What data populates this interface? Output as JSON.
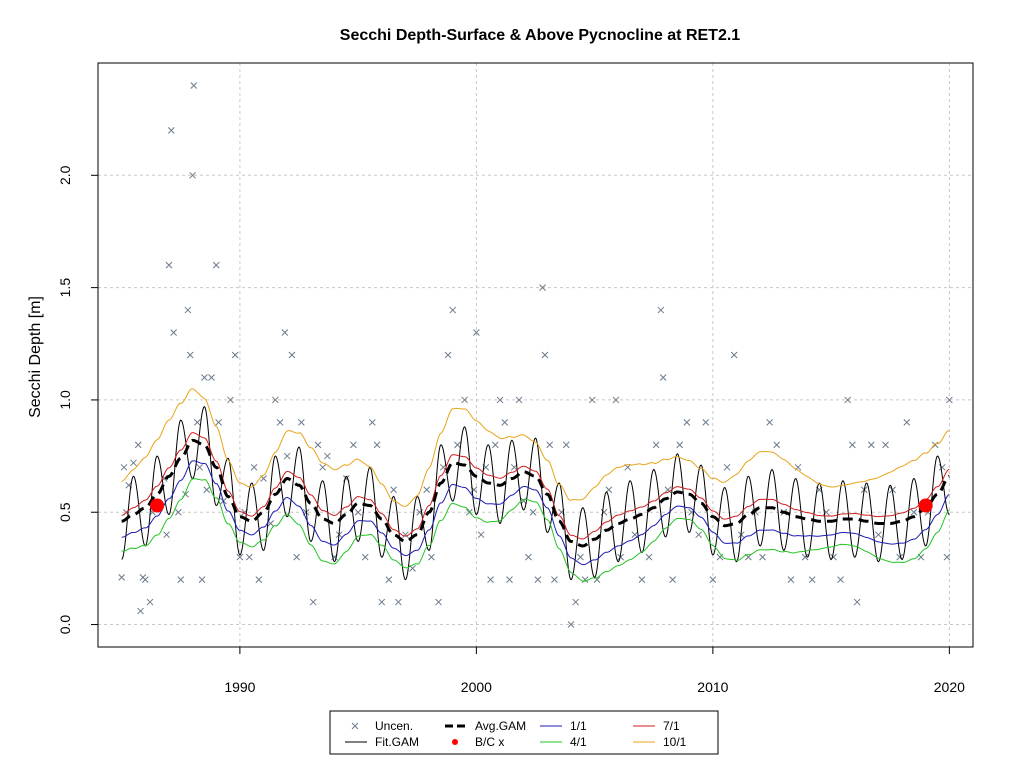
{
  "chart_data": {
    "type": "scatter",
    "title": "Secchi Depth-Surface & Above Pycnocline at RET2.1",
    "xlabel": "",
    "ylabel": "Secchi Depth [m]",
    "xlim": [
      1984,
      2021
    ],
    "ylim": [
      -0.1,
      2.5
    ],
    "xticks": [
      1990,
      2000,
      2010,
      2020
    ],
    "yticks": [
      0.0,
      0.5,
      1.0,
      1.5,
      2.0
    ],
    "xtick_labels": [
      "1990",
      "2000",
      "2010",
      "2020"
    ],
    "ytick_labels": [
      "0.0",
      "0.5",
      "1.0",
      "1.5",
      "2.0"
    ],
    "grid": true,
    "legend_position": "bottom-center",
    "colors": {
      "points": "#6b7b8c",
      "fit": "#000000",
      "avg": "#000000",
      "s1_1": "#1b1bb5",
      "s4_1": "#22c422",
      "s7_1": "#d01c1c",
      "s10_1": "#e8a317",
      "bc": "#ff0000"
    },
    "legend": [
      {
        "key": "uncen",
        "label": "Uncen."
      },
      {
        "key": "avg",
        "label": "Avg.GAM"
      },
      {
        "key": "s1_1",
        "label": "1/1"
      },
      {
        "key": "s7_1",
        "label": "7/1"
      },
      {
        "key": "fit",
        "label": "Fit.GAM"
      },
      {
        "key": "bc",
        "label": "B/C x"
      },
      {
        "key": "s4_1",
        "label": "4/1"
      },
      {
        "key": "s10_1",
        "label": "10/1"
      }
    ],
    "avg_gam": {
      "x": [
        1985.0,
        1985.5,
        1986.0,
        1986.5,
        1987.0,
        1987.5,
        1988.0,
        1988.5,
        1989.0,
        1989.5,
        1990.0,
        1990.5,
        1991.0,
        1991.5,
        1992.0,
        1992.5,
        1993.0,
        1993.5,
        1994.0,
        1994.5,
        1995.0,
        1995.5,
        1996.0,
        1996.5,
        1997.0,
        1997.5,
        1998.0,
        1998.5,
        1999.0,
        1999.5,
        2000.0,
        2000.5,
        2001.0,
        2001.5,
        2002.0,
        2002.5,
        2003.0,
        2003.5,
        2004.0,
        2004.5,
        2005.0,
        2005.5,
        2006.0,
        2006.5,
        2007.0,
        2007.5,
        2008.0,
        2008.5,
        2009.0,
        2009.5,
        2010.0,
        2010.5,
        2011.0,
        2011.5,
        2012.0,
        2012.5,
        2013.0,
        2013.5,
        2014.0,
        2014.5,
        2015.0,
        2015.5,
        2016.0,
        2016.5,
        2017.0,
        2017.5,
        2018.0,
        2018.5,
        2019.0,
        2019.5,
        2020.0
      ],
      "y": [
        0.46,
        0.49,
        0.52,
        0.58,
        0.66,
        0.74,
        0.82,
        0.8,
        0.7,
        0.57,
        0.48,
        0.46,
        0.5,
        0.58,
        0.65,
        0.62,
        0.54,
        0.47,
        0.45,
        0.49,
        0.54,
        0.53,
        0.47,
        0.4,
        0.37,
        0.4,
        0.5,
        0.63,
        0.72,
        0.71,
        0.66,
        0.63,
        0.62,
        0.65,
        0.68,
        0.66,
        0.58,
        0.46,
        0.37,
        0.35,
        0.38,
        0.42,
        0.45,
        0.47,
        0.49,
        0.52,
        0.56,
        0.59,
        0.58,
        0.54,
        0.48,
        0.44,
        0.45,
        0.49,
        0.52,
        0.52,
        0.5,
        0.48,
        0.47,
        0.46,
        0.46,
        0.47,
        0.47,
        0.46,
        0.45,
        0.45,
        0.46,
        0.48,
        0.52,
        0.58,
        0.66
      ]
    },
    "bounds_offsets": {
      "s1_1": -0.08,
      "s4_1": -0.15,
      "s7_1": 0.03,
      "s10_1": 0.2
    },
    "seasonal_amplitude": 0.17,
    "bc_points": [
      {
        "x": 1986.5,
        "y": 0.53
      },
      {
        "x": 2019.0,
        "y": 0.53
      }
    ],
    "observations": [
      {
        "x": 1985.0,
        "y": 0.21
      },
      {
        "x": 1985.1,
        "y": 0.7
      },
      {
        "x": 1985.2,
        "y": 0.5
      },
      {
        "x": 1985.3,
        "y": 0.62
      },
      {
        "x": 1985.5,
        "y": 0.72
      },
      {
        "x": 1985.7,
        "y": 0.8
      },
      {
        "x": 1985.8,
        "y": 0.06
      },
      {
        "x": 1985.9,
        "y": 0.21
      },
      {
        "x": 1986.0,
        "y": 0.2
      },
      {
        "x": 1986.2,
        "y": 0.1
      },
      {
        "x": 1986.3,
        "y": 0.5
      },
      {
        "x": 1986.6,
        "y": 0.52
      },
      {
        "x": 1986.8,
        "y": 0.65
      },
      {
        "x": 1986.9,
        "y": 0.4
      },
      {
        "x": 1987.0,
        "y": 1.6
      },
      {
        "x": 1987.1,
        "y": 2.2
      },
      {
        "x": 1987.2,
        "y": 1.3
      },
      {
        "x": 1987.4,
        "y": 0.5
      },
      {
        "x": 1987.5,
        "y": 0.2
      },
      {
        "x": 1987.7,
        "y": 0.58
      },
      {
        "x": 1987.8,
        "y": 1.4
      },
      {
        "x": 1987.9,
        "y": 1.2
      },
      {
        "x": 1988.0,
        "y": 2.0
      },
      {
        "x": 1988.05,
        "y": 2.4
      },
      {
        "x": 1988.2,
        "y": 0.9
      },
      {
        "x": 1988.3,
        "y": 0.7
      },
      {
        "x": 1988.4,
        "y": 0.2
      },
      {
        "x": 1988.5,
        "y": 1.1
      },
      {
        "x": 1988.6,
        "y": 0.6
      },
      {
        "x": 1988.8,
        "y": 1.1
      },
      {
        "x": 1989.0,
        "y": 1.6
      },
      {
        "x": 1989.1,
        "y": 0.9
      },
      {
        "x": 1989.3,
        "y": 0.55
      },
      {
        "x": 1989.6,
        "y": 1.0
      },
      {
        "x": 1989.8,
        "y": 1.2
      },
      {
        "x": 1990.0,
        "y": 0.3
      },
      {
        "x": 1990.2,
        "y": 0.5
      },
      {
        "x": 1990.4,
        "y": 0.3
      },
      {
        "x": 1990.6,
        "y": 0.7
      },
      {
        "x": 1990.8,
        "y": 0.2
      },
      {
        "x": 1991.0,
        "y": 0.65
      },
      {
        "x": 1991.3,
        "y": 0.45
      },
      {
        "x": 1991.5,
        "y": 1.0
      },
      {
        "x": 1991.7,
        "y": 0.9
      },
      {
        "x": 1991.9,
        "y": 1.3
      },
      {
        "x": 1992.0,
        "y": 0.75
      },
      {
        "x": 1992.2,
        "y": 1.2
      },
      {
        "x": 1992.4,
        "y": 0.3
      },
      {
        "x": 1992.6,
        "y": 0.9
      },
      {
        "x": 1992.8,
        "y": 0.5
      },
      {
        "x": 1993.1,
        "y": 0.1
      },
      {
        "x": 1993.3,
        "y": 0.8
      },
      {
        "x": 1993.5,
        "y": 0.7
      },
      {
        "x": 1993.7,
        "y": 0.75
      },
      {
        "x": 1994.0,
        "y": 0.3
      },
      {
        "x": 1994.2,
        "y": 0.4
      },
      {
        "x": 1994.5,
        "y": 0.65
      },
      {
        "x": 1994.8,
        "y": 0.8
      },
      {
        "x": 1995.0,
        "y": 0.5
      },
      {
        "x": 1995.3,
        "y": 0.3
      },
      {
        "x": 1995.6,
        "y": 0.9
      },
      {
        "x": 1995.8,
        "y": 0.8
      },
      {
        "x": 1996.0,
        "y": 0.1
      },
      {
        "x": 1996.3,
        "y": 0.2
      },
      {
        "x": 1996.5,
        "y": 0.6
      },
      {
        "x": 1996.7,
        "y": 0.1
      },
      {
        "x": 1997.0,
        "y": 0.4
      },
      {
        "x": 1997.3,
        "y": 0.25
      },
      {
        "x": 1997.6,
        "y": 0.5
      },
      {
        "x": 1997.9,
        "y": 0.6
      },
      {
        "x": 1998.1,
        "y": 0.3
      },
      {
        "x": 1998.4,
        "y": 0.1
      },
      {
        "x": 1998.6,
        "y": 0.7
      },
      {
        "x": 1998.8,
        "y": 1.2
      },
      {
        "x": 1999.0,
        "y": 1.4
      },
      {
        "x": 1999.2,
        "y": 0.8
      },
      {
        "x": 1999.5,
        "y": 1.0
      },
      {
        "x": 1999.7,
        "y": 0.5
      },
      {
        "x": 1999.9,
        "y": 0.6
      },
      {
        "x": 2000.0,
        "y": 1.3
      },
      {
        "x": 2000.2,
        "y": 0.4
      },
      {
        "x": 2000.4,
        "y": 0.7
      },
      {
        "x": 2000.6,
        "y": 0.2
      },
      {
        "x": 2000.8,
        "y": 0.8
      },
      {
        "x": 2001.0,
        "y": 1.0
      },
      {
        "x": 2001.2,
        "y": 0.9
      },
      {
        "x": 2001.4,
        "y": 0.2
      },
      {
        "x": 2001.6,
        "y": 0.7
      },
      {
        "x": 2001.8,
        "y": 1.0
      },
      {
        "x": 2002.0,
        "y": 0.55
      },
      {
        "x": 2002.2,
        "y": 0.3
      },
      {
        "x": 2002.4,
        "y": 0.5
      },
      {
        "x": 2002.6,
        "y": 0.2
      },
      {
        "x": 2002.8,
        "y": 1.5
      },
      {
        "x": 2002.9,
        "y": 1.2
      },
      {
        "x": 2003.1,
        "y": 0.8
      },
      {
        "x": 2003.3,
        "y": 0.2
      },
      {
        "x": 2003.6,
        "y": 0.5
      },
      {
        "x": 2003.8,
        "y": 0.8
      },
      {
        "x": 2004.0,
        "y": 0.0
      },
      {
        "x": 2004.2,
        "y": 0.1
      },
      {
        "x": 2004.4,
        "y": 0.3
      },
      {
        "x": 2004.6,
        "y": 0.2
      },
      {
        "x": 2004.9,
        "y": 1.0
      },
      {
        "x": 2005.1,
        "y": 0.2
      },
      {
        "x": 2005.4,
        "y": 0.5
      },
      {
        "x": 2005.6,
        "y": 0.6
      },
      {
        "x": 2005.9,
        "y": 1.0
      },
      {
        "x": 2006.1,
        "y": 0.3
      },
      {
        "x": 2006.4,
        "y": 0.7
      },
      {
        "x": 2006.7,
        "y": 0.4
      },
      {
        "x": 2007.0,
        "y": 0.2
      },
      {
        "x": 2007.3,
        "y": 0.3
      },
      {
        "x": 2007.6,
        "y": 0.8
      },
      {
        "x": 2007.8,
        "y": 1.4
      },
      {
        "x": 2007.9,
        "y": 1.1
      },
      {
        "x": 2008.1,
        "y": 0.6
      },
      {
        "x": 2008.3,
        "y": 0.2
      },
      {
        "x": 2008.6,
        "y": 0.8
      },
      {
        "x": 2008.9,
        "y": 0.9
      },
      {
        "x": 2009.1,
        "y": 0.5
      },
      {
        "x": 2009.4,
        "y": 0.4
      },
      {
        "x": 2009.7,
        "y": 0.9
      },
      {
        "x": 2010.0,
        "y": 0.2
      },
      {
        "x": 2010.3,
        "y": 0.3
      },
      {
        "x": 2010.6,
        "y": 0.7
      },
      {
        "x": 2010.9,
        "y": 1.2
      },
      {
        "x": 2011.2,
        "y": 0.4
      },
      {
        "x": 2011.5,
        "y": 0.3
      },
      {
        "x": 2011.8,
        "y": 0.5
      },
      {
        "x": 2012.1,
        "y": 0.3
      },
      {
        "x": 2012.4,
        "y": 0.9
      },
      {
        "x": 2012.7,
        "y": 0.8
      },
      {
        "x": 2013.0,
        "y": 0.5
      },
      {
        "x": 2013.3,
        "y": 0.2
      },
      {
        "x": 2013.6,
        "y": 0.7
      },
      {
        "x": 2013.9,
        "y": 0.3
      },
      {
        "x": 2014.2,
        "y": 0.2
      },
      {
        "x": 2014.5,
        "y": 0.6
      },
      {
        "x": 2014.8,
        "y": 0.5
      },
      {
        "x": 2015.1,
        "y": 0.3
      },
      {
        "x": 2015.4,
        "y": 0.2
      },
      {
        "x": 2015.7,
        "y": 1.0
      },
      {
        "x": 2015.9,
        "y": 0.8
      },
      {
        "x": 2016.1,
        "y": 0.1
      },
      {
        "x": 2016.4,
        "y": 0.6
      },
      {
        "x": 2016.7,
        "y": 0.8
      },
      {
        "x": 2017.0,
        "y": 0.4
      },
      {
        "x": 2017.3,
        "y": 0.8
      },
      {
        "x": 2017.6,
        "y": 0.6
      },
      {
        "x": 2017.9,
        "y": 0.3
      },
      {
        "x": 2018.2,
        "y": 0.9
      },
      {
        "x": 2018.5,
        "y": 0.5
      },
      {
        "x": 2018.8,
        "y": 0.3
      },
      {
        "x": 2019.1,
        "y": 0.5
      },
      {
        "x": 2019.4,
        "y": 0.8
      },
      {
        "x": 2019.7,
        "y": 0.7
      },
      {
        "x": 2019.9,
        "y": 0.3
      },
      {
        "x": 2020.0,
        "y": 1.0
      }
    ]
  }
}
